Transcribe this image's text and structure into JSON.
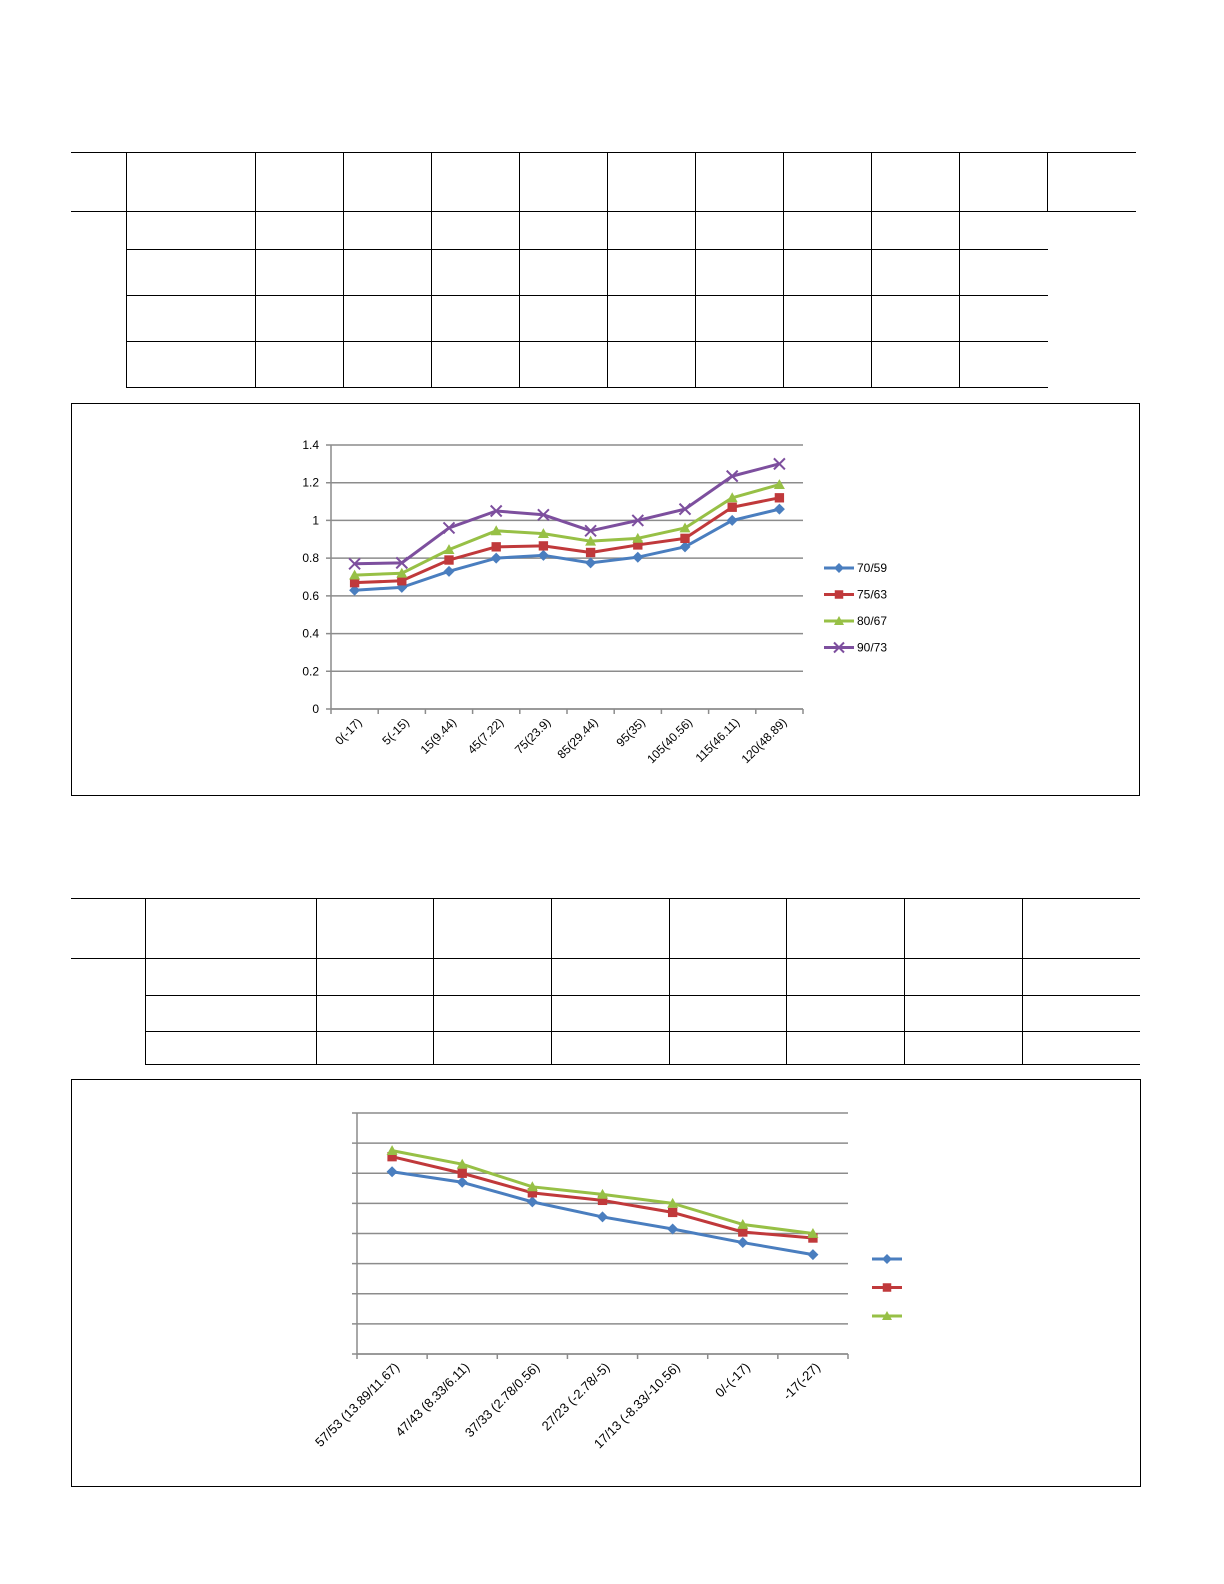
{
  "chart_data": [
    {
      "type": "line",
      "categories": [
        "0(-17)",
        "5(-15)",
        "15(9.44)",
        "45(7.22)",
        "75(23.9)",
        "85(29.44)",
        "95(35)",
        "105(40.56)",
        "115(46.11)",
        "120(48.89)"
      ],
      "y_ticks": [
        "0",
        "0.2",
        "0.4",
        "0.6",
        "0.8",
        "1",
        "1.2",
        "1.4"
      ],
      "ylim": [
        0,
        1.4
      ],
      "grid": true,
      "legend": "right",
      "series": [
        {
          "name": "70/59",
          "color": "#4a7ebf",
          "marker": "diamond",
          "values": [
            0.63,
            0.645,
            0.73,
            0.8,
            0.815,
            0.775,
            0.805,
            0.86,
            1.0,
            1.06
          ]
        },
        {
          "name": "75/63",
          "color": "#c0393b",
          "marker": "square",
          "values": [
            0.67,
            0.68,
            0.79,
            0.86,
            0.865,
            0.83,
            0.87,
            0.905,
            1.07,
            1.12
          ]
        },
        {
          "name": "80/67",
          "color": "#97c046",
          "marker": "triangle",
          "values": [
            0.71,
            0.72,
            0.845,
            0.945,
            0.93,
            0.89,
            0.905,
            0.96,
            1.12,
            1.19
          ]
        },
        {
          "name": "90/73",
          "color": "#7d4f9e",
          "marker": "x",
          "values": [
            0.77,
            0.775,
            0.96,
            1.05,
            1.03,
            0.945,
            1.0,
            1.06,
            1.235,
            1.3
          ]
        }
      ]
    },
    {
      "type": "line",
      "categories": [
        "57/53 (13.89/11.67)",
        "47/43 (8.33/6.11)",
        "37/33 (2.78/0.56)",
        "27/23 (-2.78/-5)",
        "17/13 (-8.33/-10.56)",
        "0/-(-17)",
        "-17(-27)"
      ],
      "grid": true,
      "legend": "right",
      "series": [
        {
          "color": "#4a7ebf",
          "marker": "diamond",
          "values": [
            6.05,
            5.7,
            5.05,
            4.55,
            4.15,
            3.7,
            3.3
          ]
        },
        {
          "color": "#c0393b",
          "marker": "square",
          "values": [
            6.55,
            6.0,
            5.35,
            5.1,
            4.7,
            4.05,
            3.85
          ]
        },
        {
          "color": "#97c046",
          "marker": "triangle",
          "values": [
            6.75,
            6.3,
            5.55,
            5.3,
            5.0,
            4.3,
            4.0
          ]
        }
      ]
    }
  ]
}
